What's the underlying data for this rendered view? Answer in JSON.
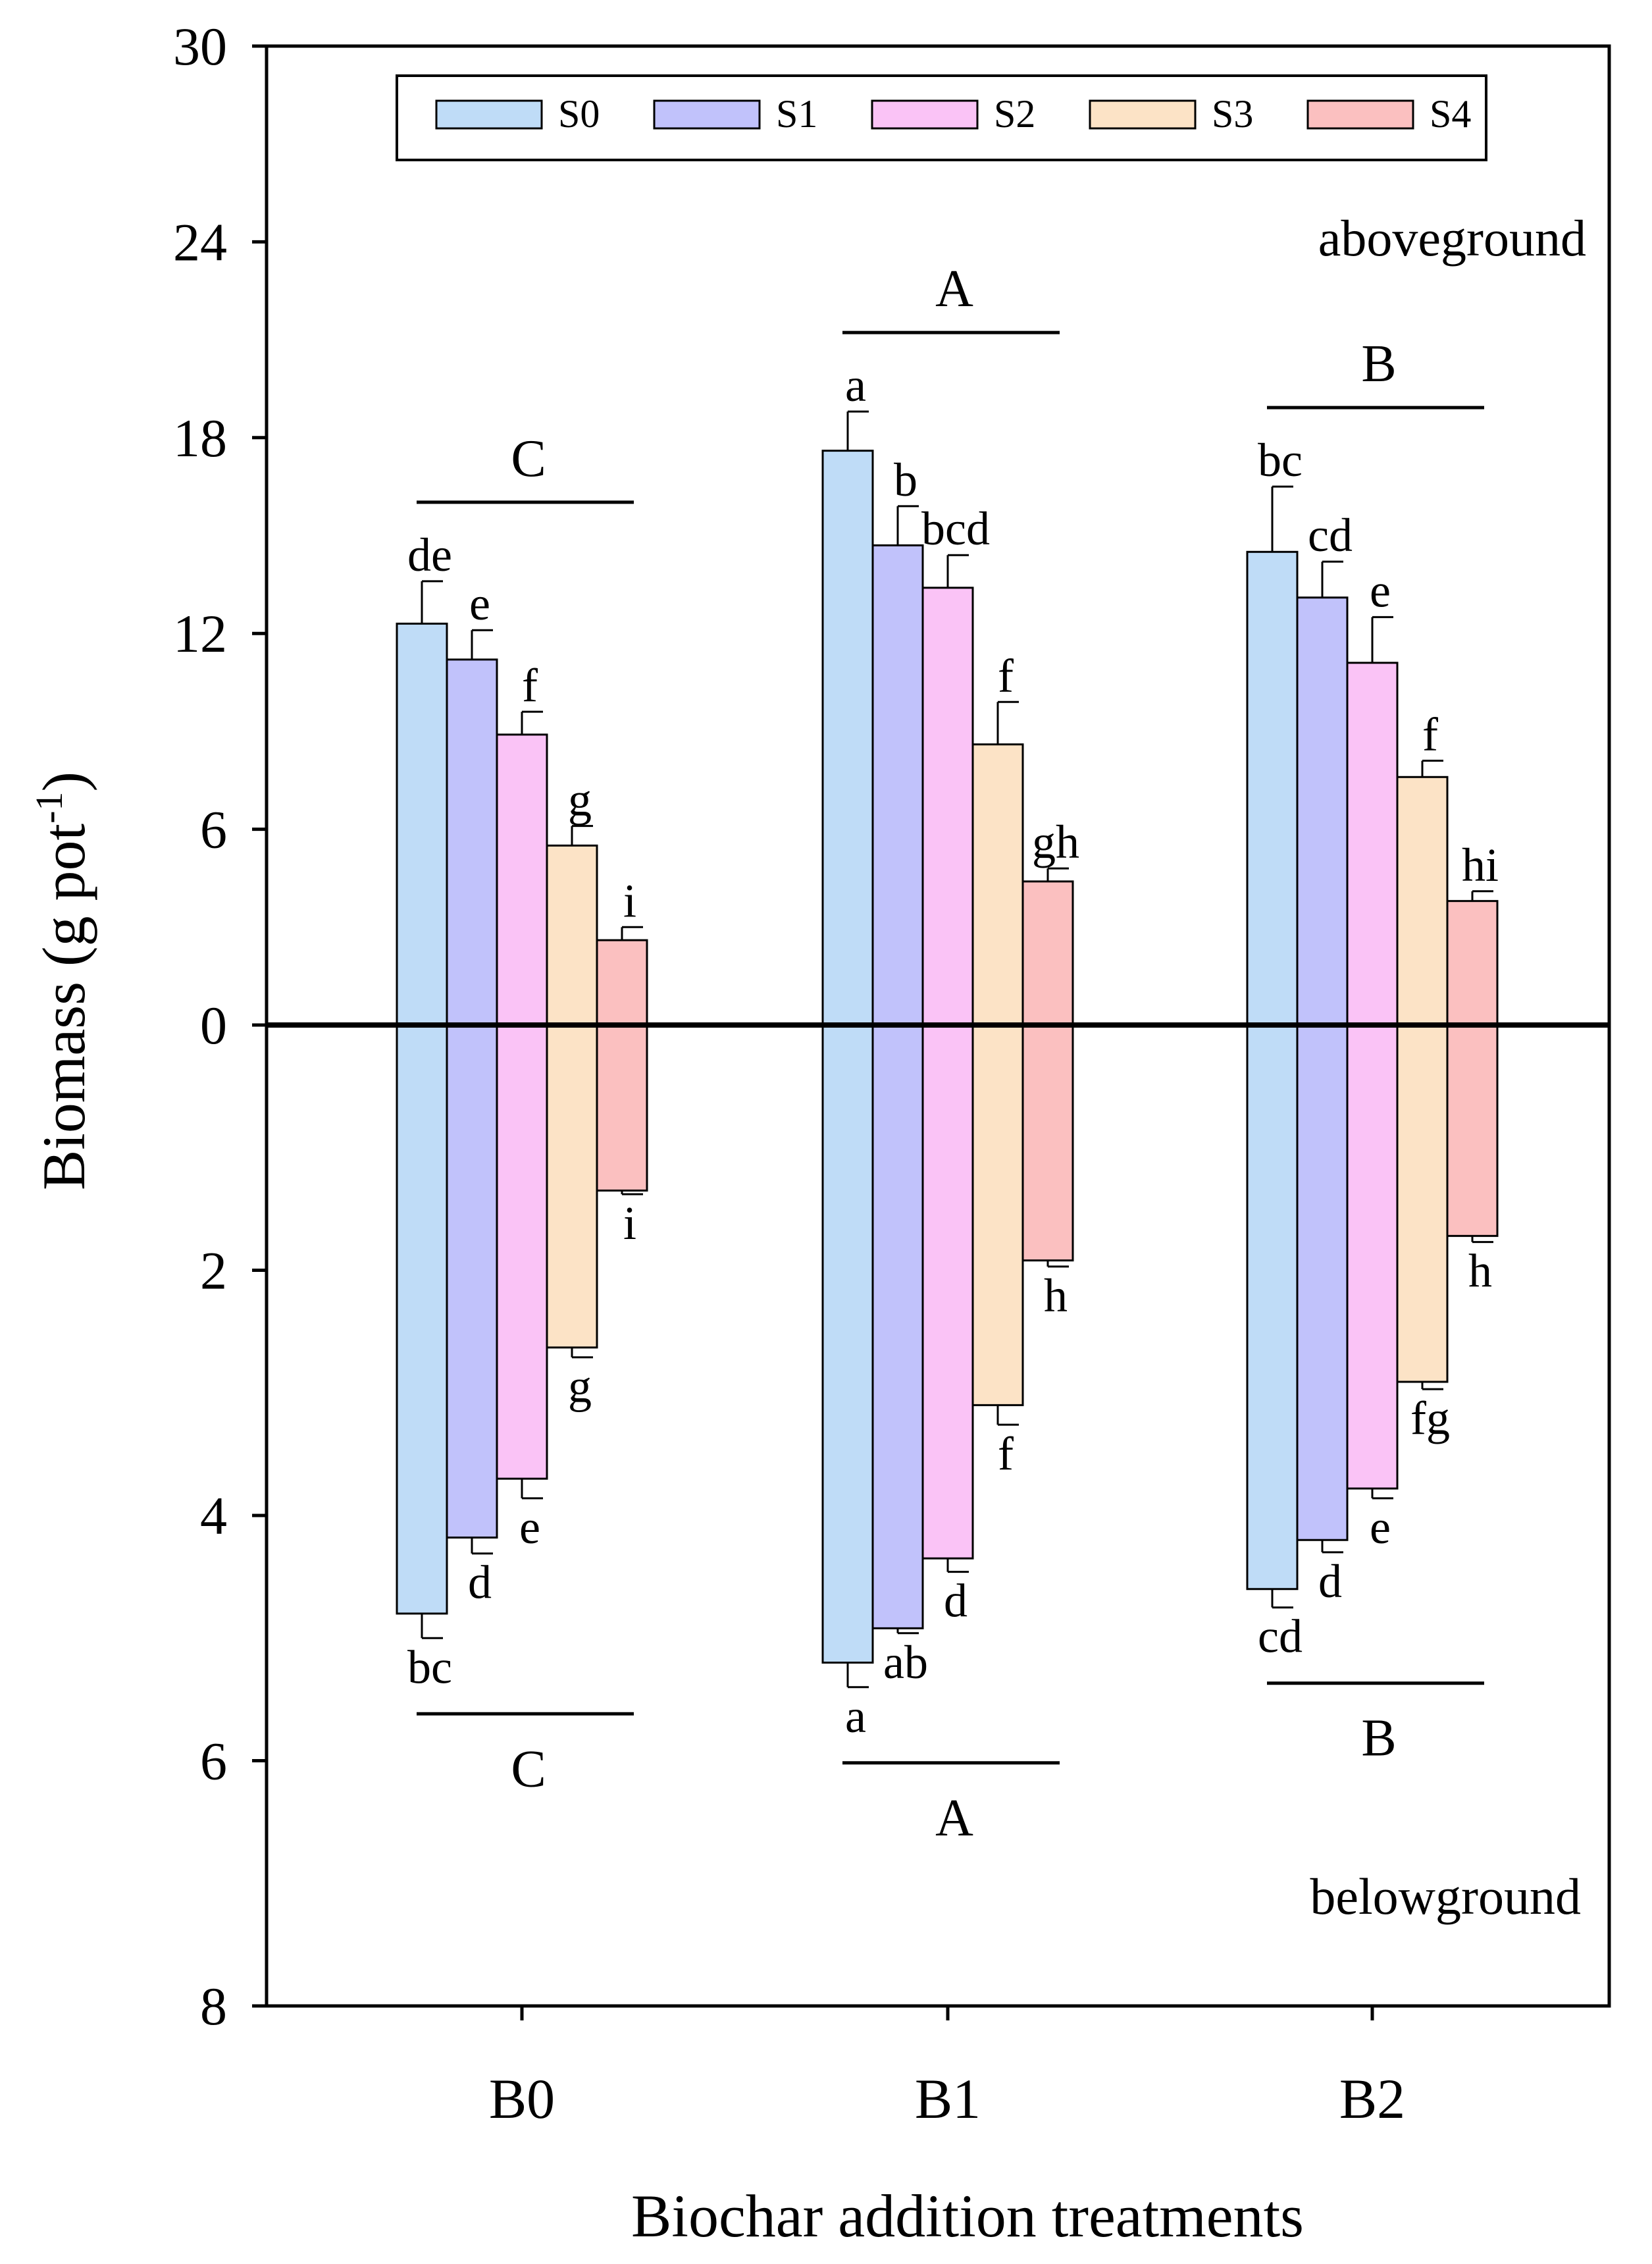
{
  "chart_data": {
    "type": "bar",
    "subtype": "mirrored-grouped-bar",
    "ylabel_main": "Biomass (g pot",
    "ylabel_sup": "-1",
    "ylabel_close": ")",
    "xlabel": "Biochar addition treatments",
    "categories": [
      "B0",
      "B1",
      "B2"
    ],
    "region_labels": {
      "upper": "aboveground",
      "lower": "belowground"
    },
    "upper_axis": {
      "range": [
        0,
        30
      ],
      "ticks": [
        0,
        6,
        12,
        18,
        24,
        30
      ]
    },
    "lower_axis": {
      "range": [
        0,
        8
      ],
      "ticks": [
        2,
        4,
        6,
        8
      ]
    },
    "series": [
      {
        "name": "S0",
        "color": "#bfdcf7",
        "above": [
          12.3,
          17.6,
          14.5
        ],
        "above_err": [
          1.3,
          1.2,
          2.0
        ],
        "below": [
          4.8,
          5.2,
          4.6
        ],
        "below_err": [
          0.2,
          0.2,
          0.15
        ]
      },
      {
        "name": "S1",
        "color": "#c1c2fb",
        "above": [
          11.2,
          14.7,
          13.1
        ],
        "above_err": [
          0.9,
          1.2,
          1.1
        ],
        "below": [
          4.18,
          4.92,
          4.2
        ],
        "below_err": [
          0.13,
          0.04,
          0.1
        ]
      },
      {
        "name": "S2",
        "color": "#fac3f6",
        "above": [
          8.9,
          13.4,
          11.1
        ],
        "above_err": [
          0.7,
          1.0,
          1.4
        ],
        "below": [
          3.7,
          4.35,
          3.78
        ],
        "below_err": [
          0.16,
          0.11,
          0.08
        ]
      },
      {
        "name": "S3",
        "color": "#fce3c6",
        "above": [
          5.5,
          8.6,
          7.6
        ],
        "above_err": [
          0.6,
          1.3,
          0.5
        ],
        "below": [
          2.63,
          3.1,
          2.91
        ],
        "below_err": [
          0.08,
          0.16,
          0.06
        ]
      },
      {
        "name": "S4",
        "color": "#fbc0c0",
        "above": [
          2.6,
          4.4,
          3.8
        ],
        "above_err": [
          0.4,
          0.4,
          0.3
        ],
        "below": [
          1.35,
          1.92,
          1.72
        ],
        "below_err": [
          0.03,
          0.05,
          0.05
        ]
      }
    ],
    "above_letters": [
      [
        "de",
        "e",
        "f",
        "g",
        "i"
      ],
      [
        "a",
        "b",
        "bcd",
        "f",
        "gh"
      ],
      [
        "bc",
        "cd",
        "e",
        "f",
        "hi"
      ]
    ],
    "below_letters": [
      [
        "bc",
        "d",
        "e",
        "g",
        "i"
      ],
      [
        "a",
        "ab",
        "d",
        "f",
        "h"
      ],
      [
        "cd",
        "d",
        "e",
        "fg",
        "h"
      ]
    ],
    "group_letters_above": [
      "C",
      "A",
      "B"
    ],
    "group_letters_below": [
      "C",
      "A",
      "B"
    ],
    "legend_position": "top"
  }
}
